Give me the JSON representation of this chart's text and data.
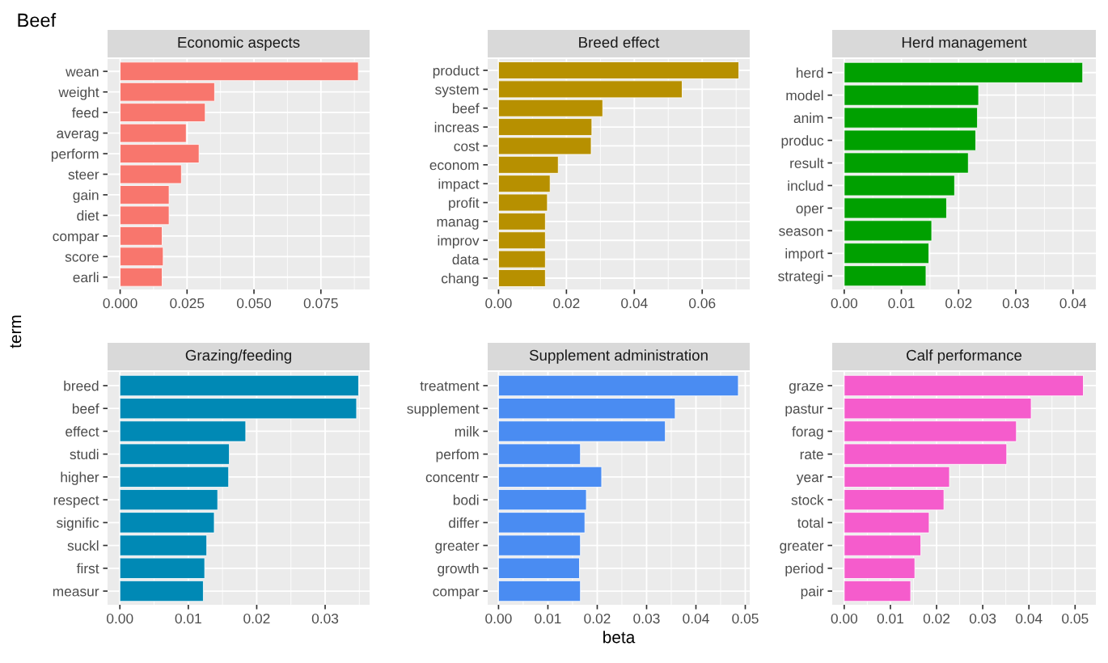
{
  "chart_data": [
    {
      "type": "bar",
      "orientation": "horizontal",
      "title": "Economic aspects",
      "ylabel": "term",
      "annotations": [
        "Beef"
      ],
      "grid": true,
      "categories": [
        "wean",
        "weight",
        "feed",
        "averag",
        "perform",
        "steer",
        "gain",
        "diet",
        "compar",
        "score",
        "earli"
      ],
      "values": [
        0.089,
        0.0353,
        0.0318,
        0.0247,
        0.0295,
        0.0229,
        0.0183,
        0.0183,
        0.0157,
        0.0161,
        0.0157
      ],
      "color": "#f8766d",
      "xlim": [
        -0.0047,
        0.0932
      ],
      "xticks": [
        {
          "value": 0,
          "label": "0.000"
        },
        {
          "value": 0.025,
          "label": "0.025"
        },
        {
          "value": 0.05,
          "label": "0.050"
        },
        {
          "value": 0.075,
          "label": "0.075"
        }
      ]
    },
    {
      "type": "bar",
      "orientation": "horizontal",
      "title": "Breed effect",
      "grid": true,
      "categories": [
        "product",
        "system",
        "beef",
        "increas",
        "cost",
        "econom",
        "impact",
        "profit",
        "manag",
        "improv",
        "data",
        "chang"
      ],
      "values": [
        0.0708,
        0.0541,
        0.0307,
        0.0275,
        0.0273,
        0.0176,
        0.0152,
        0.0144,
        0.0138,
        0.0138,
        0.0138,
        0.0138
      ],
      "color": "#b79000",
      "xlim": [
        -0.0032,
        0.074
      ],
      "xticks": [
        {
          "value": 0,
          "label": "0.00"
        },
        {
          "value": 0.02,
          "label": "0.02"
        },
        {
          "value": 0.04,
          "label": "0.04"
        },
        {
          "value": 0.06,
          "label": "0.06"
        }
      ]
    },
    {
      "type": "bar",
      "orientation": "horizontal",
      "title": "Herd management",
      "grid": true,
      "categories": [
        "herd",
        "model",
        "anim",
        "produc",
        "result",
        "includ",
        "oper",
        "season",
        "import",
        "strategi"
      ],
      "values": [
        0.0417,
        0.0235,
        0.0233,
        0.023,
        0.0217,
        0.0193,
        0.0179,
        0.0153,
        0.0148,
        0.0143
      ],
      "color": "#00a000",
      "xlim": [
        -0.0021,
        0.044
      ],
      "xticks": [
        {
          "value": 0,
          "label": "0.00"
        },
        {
          "value": 0.01,
          "label": "0.01"
        },
        {
          "value": 0.02,
          "label": "0.02"
        },
        {
          "value": 0.03,
          "label": "0.03"
        },
        {
          "value": 0.04,
          "label": "0.04"
        }
      ]
    },
    {
      "type": "bar",
      "orientation": "horizontal",
      "title": "Grazing/feeding",
      "grid": true,
      "categories": [
        "breed",
        "beef",
        "effect",
        "studi",
        "higher",
        "respect",
        "signific",
        "suckl",
        "first",
        "measur"
      ],
      "values": [
        0.0349,
        0.0346,
        0.0184,
        0.016,
        0.0159,
        0.0143,
        0.0138,
        0.0127,
        0.0124,
        0.0122
      ],
      "color": "#0089b5",
      "xlim": [
        -0.0018,
        0.0365
      ],
      "xticks": [
        {
          "value": 0,
          "label": "0.00"
        },
        {
          "value": 0.01,
          "label": "0.01"
        },
        {
          "value": 0.02,
          "label": "0.02"
        },
        {
          "value": 0.03,
          "label": "0.03"
        }
      ]
    },
    {
      "type": "bar",
      "orientation": "horizontal",
      "title": "Supplement administration",
      "xlabel": "beta",
      "grid": true,
      "categories": [
        "treatment",
        "supplement",
        "milk",
        "perfom",
        "concentr",
        "bodi",
        "differ",
        "greater",
        "growth",
        "compar"
      ],
      "values": [
        0.0486,
        0.0358,
        0.0338,
        0.0166,
        0.0209,
        0.0178,
        0.0175,
        0.0166,
        0.0164,
        0.0166
      ],
      "color": "#4a8cf2",
      "xlim": [
        -0.0022,
        0.0509
      ],
      "xticks": [
        {
          "value": 0,
          "label": "0.00"
        },
        {
          "value": 0.01,
          "label": "0.01"
        },
        {
          "value": 0.02,
          "label": "0.02"
        },
        {
          "value": 0.03,
          "label": "0.03"
        },
        {
          "value": 0.04,
          "label": "0.04"
        },
        {
          "value": 0.05,
          "label": "0.05"
        }
      ]
    },
    {
      "type": "bar",
      "orientation": "horizontal",
      "title": "Calf performance",
      "grid": true,
      "categories": [
        "graze",
        "pastur",
        "forag",
        "rate",
        "year",
        "stock",
        "total",
        "greater",
        "period",
        "pair"
      ],
      "values": [
        0.0518,
        0.0405,
        0.0373,
        0.0352,
        0.0228,
        0.0216,
        0.0184,
        0.0166,
        0.0153,
        0.0144
      ],
      "color": "#f55ccc",
      "xlim": [
        -0.0026,
        0.0545
      ],
      "xticks": [
        {
          "value": 0,
          "label": "0.00"
        },
        {
          "value": 0.01,
          "label": "0.01"
        },
        {
          "value": 0.02,
          "label": "0.02"
        },
        {
          "value": 0.03,
          "label": "0.03"
        },
        {
          "value": 0.04,
          "label": "0.04"
        },
        {
          "value": 0.05,
          "label": "0.05"
        }
      ]
    }
  ]
}
